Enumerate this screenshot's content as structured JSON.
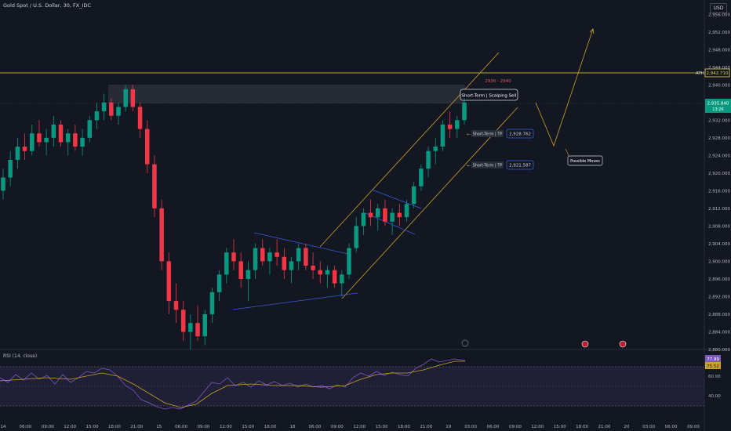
{
  "header": {
    "symbol_title": "Gold Spot / U.S. Dollar, 30, FX_IDC",
    "currency": "USD"
  },
  "rsi_panel": {
    "title": "RSI (14, close)",
    "values": [
      "77.99",
      "75.52"
    ],
    "levels": [
      60.0,
      40.0
    ]
  },
  "annotations": {
    "ath_label": "ATH",
    "ath_price": "2,942.710",
    "zone_label": "2936 - 2940",
    "sell_label": "Short-Term | Scalping Sell",
    "tp1_label": "Short-Term | TP",
    "tp1_price": "2,928.762",
    "tp2_label": "Short-Term | TP",
    "tp2_price": "2,921.587",
    "possible_label": "Possible Moves",
    "current_price": "2,935.840",
    "current_time": "13:26"
  },
  "chart_data": {
    "type": "candlestick",
    "title": "Gold Spot / U.S. Dollar, 30, FX_IDC",
    "ylim": [
      2880,
      2958
    ],
    "y_ticks": [
      2956,
      2952,
      2948,
      2944,
      2940,
      2936,
      2932,
      2928,
      2924,
      2920,
      2916,
      2912,
      2908,
      2904,
      2900,
      2896,
      2892,
      2888,
      2884,
      2880
    ],
    "y_tick_labels": [
      "2,956.000",
      "2,952.000",
      "2,948.000",
      "2,944.000",
      "2,940.000",
      "2,936.000",
      "2,932.000",
      "2,928.000",
      "2,924.000",
      "2,920.000",
      "2,916.000",
      "2,912.000",
      "2,908.000",
      "2,904.000",
      "2,900.000",
      "2,896.000",
      "2,892.000",
      "2,888.000",
      "2,884.000",
      "2,880.000"
    ],
    "x_tick_labels": [
      "14",
      "06:00",
      "09:00",
      "12:00",
      "15:00",
      "18:00",
      "21:00",
      "15",
      "06:00",
      "09:00",
      "12:00",
      "15:00",
      "18:00",
      "18",
      "06:00",
      "09:00",
      "12:00",
      "15:00",
      "18:00",
      "21:00",
      "19",
      "03:00",
      "06:00",
      "09:00",
      "12:00",
      "15:00",
      "18:00",
      "21:00",
      "20",
      "03:00",
      "06:00",
      "09:00"
    ],
    "rsi_ylim": [
      20,
      80
    ],
    "rsi_ticks": [
      60.0,
      40.0
    ],
    "rsi_tick_labels": [
      "60.00",
      "40.00"
    ],
    "key_levels": {
      "ath": 2942.71,
      "supply_zone": [
        2936,
        2940
      ],
      "tp1": 2928.762,
      "tp2": 2921.587,
      "last_price": 2935.84
    },
    "ohlc": [
      [
        2916,
        2921,
        2914,
        2919
      ],
      [
        2919,
        2925,
        2917,
        2923
      ],
      [
        2923,
        2928,
        2921,
        2926
      ],
      [
        2926,
        2929,
        2923,
        2925
      ],
      [
        2925,
        2931,
        2924,
        2929
      ],
      [
        2929,
        2932,
        2926,
        2927
      ],
      [
        2927,
        2930,
        2924,
        2928
      ],
      [
        2928,
        2933,
        2926,
        2931
      ],
      [
        2931,
        2932,
        2926,
        2927
      ],
      [
        2927,
        2930,
        2924,
        2929
      ],
      [
        2929,
        2931,
        2925,
        2926
      ],
      [
        2926,
        2930,
        2924,
        2928
      ],
      [
        2928,
        2933,
        2927,
        2932
      ],
      [
        2932,
        2936,
        2930,
        2934
      ],
      [
        2934,
        2938,
        2932,
        2936
      ],
      [
        2936,
        2937,
        2932,
        2933
      ],
      [
        2933,
        2936,
        2931,
        2935
      ],
      [
        2935,
        2940,
        2934,
        2939
      ],
      [
        2939,
        2940,
        2934,
        2935
      ],
      [
        2935,
        2936,
        2928,
        2930
      ],
      [
        2930,
        2932,
        2920,
        2922
      ],
      [
        2922,
        2924,
        2910,
        2912
      ],
      [
        2912,
        2914,
        2898,
        2900
      ],
      [
        2900,
        2902,
        2888,
        2891
      ],
      [
        2891,
        2895,
        2886,
        2889
      ],
      [
        2889,
        2891,
        2882,
        2884
      ],
      [
        2884,
        2888,
        2880,
        2886
      ],
      [
        2886,
        2890,
        2882,
        2883
      ],
      [
        2883,
        2889,
        2881,
        2888
      ],
      [
        2888,
        2894,
        2886,
        2893
      ],
      [
        2893,
        2898,
        2891,
        2897
      ],
      [
        2897,
        2903,
        2895,
        2902
      ],
      [
        2902,
        2905,
        2898,
        2900
      ],
      [
        2900,
        2902,
        2894,
        2896
      ],
      [
        2896,
        2900,
        2891,
        2898
      ],
      [
        2898,
        2904,
        2896,
        2903
      ],
      [
        2903,
        2905,
        2899,
        2900
      ],
      [
        2900,
        2903,
        2897,
        2902
      ],
      [
        2902,
        2905,
        2899,
        2901
      ],
      [
        2901,
        2903,
        2896,
        2898
      ],
      [
        2898,
        2901,
        2895,
        2900
      ],
      [
        2900,
        2904,
        2898,
        2903
      ],
      [
        2903,
        2904,
        2898,
        2899
      ],
      [
        2899,
        2902,
        2896,
        2898
      ],
      [
        2898,
        2900,
        2895,
        2897
      ],
      [
        2897,
        2899,
        2894,
        2898
      ],
      [
        2898,
        2899,
        2894,
        2895
      ],
      [
        2895,
        2898,
        2892,
        2897
      ],
      [
        2897,
        2904,
        2896,
        2903
      ],
      [
        2903,
        2910,
        2902,
        2908
      ],
      [
        2908,
        2912,
        2906,
        2911
      ],
      [
        2911,
        2914,
        2908,
        2910
      ],
      [
        2910,
        2913,
        2907,
        2912
      ],
      [
        2912,
        2914,
        2908,
        2909
      ],
      [
        2909,
        2912,
        2906,
        2911
      ],
      [
        2911,
        2913,
        2908,
        2910
      ],
      [
        2910,
        2914,
        2909,
        2913
      ],
      [
        2913,
        2918,
        2912,
        2917
      ],
      [
        2917,
        2922,
        2916,
        2921
      ],
      [
        2921,
        2926,
        2919,
        2925
      ],
      [
        2925,
        2928,
        2922,
        2926
      ],
      [
        2926,
        2932,
        2925,
        2931
      ],
      [
        2931,
        2934,
        2928,
        2930
      ],
      [
        2930,
        2933,
        2928,
        2932
      ],
      [
        2932,
        2937,
        2931,
        2936
      ]
    ]
  }
}
